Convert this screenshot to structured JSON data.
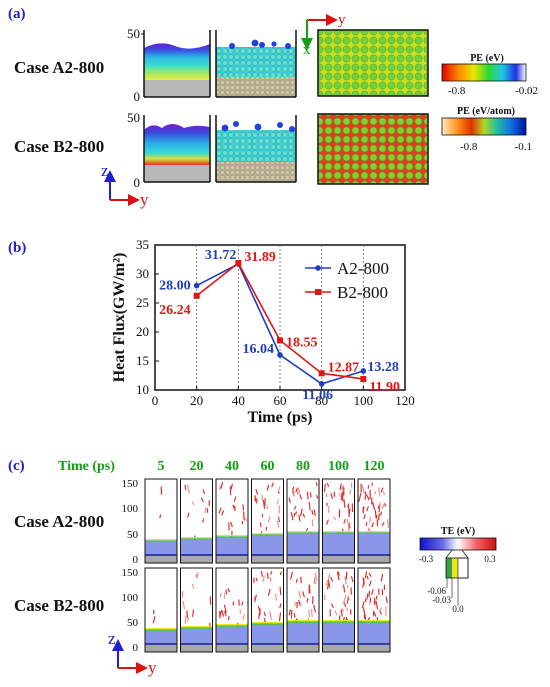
{
  "panel_a": {
    "label": "(a)",
    "rows": [
      {
        "label": "Case A2-800"
      },
      {
        "label": "Case B2-800"
      }
    ],
    "yticks": [
      "50",
      "0"
    ],
    "axes": {
      "z": "z",
      "y": "y"
    },
    "top_axes": {
      "y": "y",
      "x": "x"
    },
    "colorbar_pe": {
      "title": "PE (eV)",
      "min": "-0.8",
      "max": "-0.02"
    },
    "colorbar_pe_atom": {
      "title": "PE (eV/atom)",
      "min": "-0.8",
      "max": "-0.1"
    }
  },
  "panel_b": {
    "label": "(b)",
    "chart_data": {
      "type": "line",
      "xlabel": "Time (ps)",
      "ylabel": "Heat Flux(GW/m²)",
      "xlim": [
        0,
        120
      ],
      "ylim": [
        10,
        35
      ],
      "xticks": [
        "0",
        "20",
        "40",
        "60",
        "80",
        "100",
        "120"
      ],
      "yticks": [
        "10",
        "15",
        "20",
        "25",
        "30",
        "35"
      ],
      "legend_position": "top-right",
      "series": [
        {
          "name": "A2-800",
          "color": "#1f3fbf",
          "marker": "circle",
          "x": [
            20,
            40,
            60,
            80,
            100
          ],
          "values": [
            28.0,
            31.72,
            16.04,
            11.06,
            13.28
          ],
          "labels": [
            "28.00",
            "31.72",
            "16.04",
            "11.06",
            "13.28"
          ]
        },
        {
          "name": "B2-800",
          "color": "#e01515",
          "marker": "square",
          "x": [
            20,
            40,
            60,
            80,
            100
          ],
          "values": [
            26.24,
            31.89,
            18.55,
            12.87,
            11.9
          ],
          "labels": [
            "26.24",
            "31.89",
            "18.55",
            "12.87",
            "11.90"
          ]
        }
      ]
    }
  },
  "panel_c": {
    "label": "(c)",
    "time_label": "Time (ps)",
    "times": [
      "5",
      "20",
      "40",
      "60",
      "80",
      "100",
      "120"
    ],
    "rows": [
      {
        "label": "Case A2-800"
      },
      {
        "label": "Case B2-800"
      }
    ],
    "yticks": [
      "150",
      "100",
      "50",
      "0"
    ],
    "axes": {
      "z": "z",
      "y": "y"
    },
    "colorbar_te": {
      "title": "TE (eV)",
      "min": "-0.3",
      "max": "0.3",
      "marks": [
        "-0.06",
        "-0.03",
        "0.0"
      ]
    }
  }
}
